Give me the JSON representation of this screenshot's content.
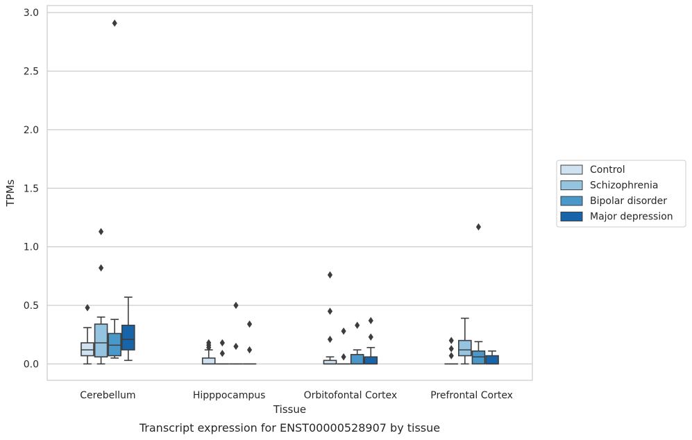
{
  "chart_data": {
    "type": "box",
    "title": "Transcript expression for ENST00000528907 by tissue",
    "xlabel": "Tissue",
    "ylabel": "TPMs",
    "ylim": [
      -0.14,
      3.06
    ],
    "yticks": [
      0.0,
      0.5,
      1.0,
      1.5,
      2.0,
      2.5,
      3.0
    ],
    "ytick_labels": [
      "0.0",
      "0.5",
      "1.0",
      "1.5",
      "2.0",
      "2.5",
      "3.0"
    ],
    "grid": "horizontal",
    "legend_position": "right",
    "categories": [
      "Cerebellum",
      "Hipppocampus",
      "Orbitofontal Cortex",
      "Prefrontal Cortex"
    ],
    "series": [
      {
        "name": "Control",
        "color": "#d0e1f2",
        "boxes": [
          {
            "whislo": 0.0,
            "q1": 0.07,
            "med": 0.12,
            "q3": 0.18,
            "whishi": 0.31,
            "fliers": [
              0.48
            ]
          },
          {
            "whislo": 0.0,
            "q1": 0.0,
            "med": 0.0,
            "q3": 0.05,
            "whishi": 0.12,
            "fliers": [
              0.14,
              0.16,
              0.18
            ]
          },
          {
            "whislo": 0.0,
            "q1": 0.0,
            "med": 0.0,
            "q3": 0.03,
            "whishi": 0.06,
            "fliers": [
              0.21,
              0.45,
              0.76
            ]
          },
          {
            "whislo": 0.0,
            "q1": 0.0,
            "med": 0.0,
            "q3": 0.0,
            "whishi": 0.0,
            "fliers": [
              0.07,
              0.13,
              0.2
            ]
          }
        ]
      },
      {
        "name": "Schizophrenia",
        "color": "#94c4df",
        "boxes": [
          {
            "whislo": 0.0,
            "q1": 0.06,
            "med": 0.18,
            "q3": 0.34,
            "whishi": 0.4,
            "fliers": [
              0.82,
              1.13
            ]
          },
          {
            "whislo": 0.0,
            "q1": 0.0,
            "med": 0.0,
            "q3": 0.0,
            "whishi": 0.0,
            "fliers": [
              0.09,
              0.18
            ]
          },
          {
            "whislo": 0.0,
            "q1": 0.0,
            "med": 0.0,
            "q3": 0.0,
            "whishi": 0.0,
            "fliers": [
              0.06,
              0.28
            ]
          },
          {
            "whislo": 0.0,
            "q1": 0.07,
            "med": 0.12,
            "q3": 0.2,
            "whishi": 0.39,
            "fliers": []
          }
        ]
      },
      {
        "name": "Bipolar disorder",
        "color": "#4a98c9",
        "boxes": [
          {
            "whislo": 0.05,
            "q1": 0.07,
            "med": 0.16,
            "q3": 0.26,
            "whishi": 0.38,
            "fliers": [
              2.91
            ]
          },
          {
            "whislo": 0.0,
            "q1": 0.0,
            "med": 0.0,
            "q3": 0.0,
            "whishi": 0.0,
            "fliers": [
              0.15,
              0.5
            ]
          },
          {
            "whislo": 0.0,
            "q1": 0.0,
            "med": 0.0,
            "q3": 0.08,
            "whishi": 0.12,
            "fliers": [
              0.33
            ]
          },
          {
            "whislo": 0.0,
            "q1": 0.0,
            "med": 0.06,
            "q3": 0.11,
            "whishi": 0.19,
            "fliers": [
              1.17
            ]
          }
        ]
      },
      {
        "name": "Major depression",
        "color": "#1764ab",
        "boxes": [
          {
            "whislo": 0.03,
            "q1": 0.12,
            "med": 0.21,
            "q3": 0.33,
            "whishi": 0.57,
            "fliers": []
          },
          {
            "whislo": 0.0,
            "q1": 0.0,
            "med": 0.0,
            "q3": 0.0,
            "whishi": 0.0,
            "fliers": [
              0.12,
              0.34
            ]
          },
          {
            "whislo": 0.0,
            "q1": 0.0,
            "med": 0.0,
            "q3": 0.06,
            "whishi": 0.14,
            "fliers": [
              0.23,
              0.37
            ]
          },
          {
            "whislo": 0.0,
            "q1": 0.0,
            "med": 0.0,
            "q3": 0.07,
            "whishi": 0.11,
            "fliers": []
          }
        ]
      }
    ]
  }
}
